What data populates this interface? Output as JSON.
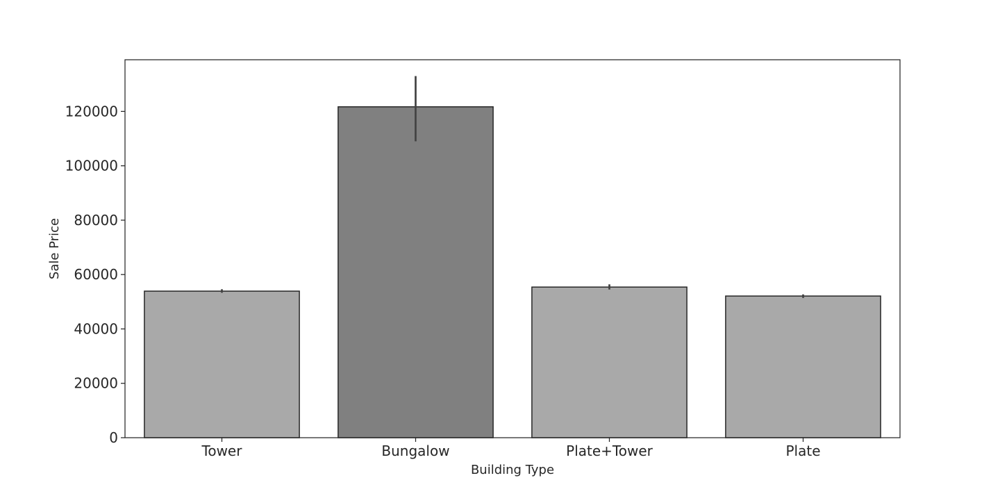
{
  "chart_data": {
    "type": "bar",
    "title": "",
    "xlabel": "Building Type",
    "ylabel": "Sale Price",
    "categories": [
      "Tower",
      "Bungalow",
      "Plate+Tower",
      "Plate"
    ],
    "values": [
      53900,
      121700,
      55400,
      52100
    ],
    "error_bars": [
      {
        "low": 53300,
        "high": 54600
      },
      {
        "low": 109000,
        "high": 133000
      },
      {
        "low": 54500,
        "high": 56400
      },
      {
        "low": 51400,
        "high": 52700
      }
    ],
    "ylim": [
      0,
      139000
    ],
    "yticks": [
      "0",
      "20000",
      "40000",
      "60000",
      "80000",
      "100000",
      "120000"
    ],
    "ytick_values": [
      0,
      20000,
      40000,
      60000,
      80000,
      100000,
      120000
    ],
    "grid": false,
    "legend": "none",
    "colors": {
      "bars": [
        "#a9a9a9",
        "#808080",
        "#a9a9a9",
        "#a9a9a9"
      ],
      "bar_edge": "#262626",
      "error_bar": "#424242",
      "axes": "#262626"
    }
  }
}
